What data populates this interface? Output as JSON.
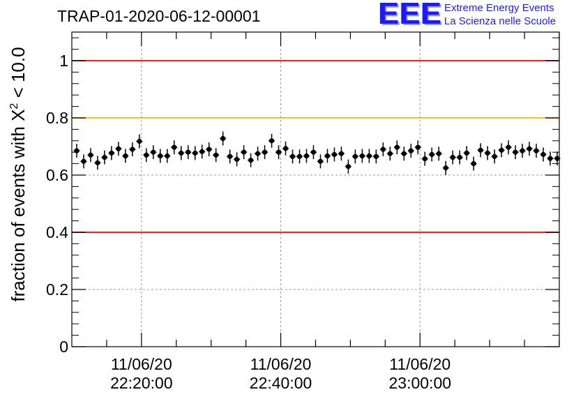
{
  "header": {
    "title": "TRAP-01-2020-06-12-00001",
    "logo_letters": "EEE",
    "logo_line1": "Extreme Energy Events",
    "logo_line2": "La Scienza nelle Scuole"
  },
  "colors": {
    "red_line": "#e8231f",
    "orange_line": "#ffc107",
    "marker": "#000000",
    "logo": "#1a1aff"
  },
  "chart_data": {
    "type": "scatter",
    "title": "TRAP-01-2020-06-12-00001",
    "ylabel_prefix": "fraction of events with ",
    "ylabel_symbol": "X",
    "ylabel_sup": "2",
    "ylabel_suffix": " < 10.0",
    "xlabel": "",
    "ylim": [
      0,
      1.1
    ],
    "yticks": [
      0,
      0.2,
      0.4,
      0.6,
      0.8,
      1
    ],
    "ytick_labels": [
      "0",
      "0.2",
      "0.4",
      "0.6",
      "0.8",
      "1"
    ],
    "xlim_minutes": [
      10,
      80
    ],
    "xticks_minutes": [
      20,
      40,
      60
    ],
    "xtick_labels": [
      [
        "11/06/20",
        "22:20:00"
      ],
      [
        "11/06/20",
        "22:40:00"
      ],
      [
        "11/06/20",
        "23:00:00"
      ]
    ],
    "grid": true,
    "reference_lines": [
      {
        "y": 1.0,
        "color": "red"
      },
      {
        "y": 0.8,
        "color": "orange"
      },
      {
        "y": 0.4,
        "color": "red"
      }
    ],
    "x_minutes": [
      10.7,
      11.7,
      12.7,
      13.7,
      14.7,
      15.7,
      16.7,
      17.7,
      18.7,
      19.7,
      20.7,
      21.7,
      22.7,
      23.7,
      24.7,
      25.7,
      26.7,
      27.7,
      28.7,
      29.7,
      30.7,
      31.7,
      32.7,
      33.7,
      34.7,
      35.7,
      36.7,
      37.7,
      38.7,
      39.7,
      40.7,
      41.7,
      42.7,
      43.7,
      44.7,
      45.7,
      46.7,
      47.7,
      48.7,
      49.7,
      50.7,
      51.7,
      52.7,
      53.7,
      54.7,
      55.7,
      56.7,
      57.7,
      58.7,
      59.7,
      60.7,
      61.7,
      62.7,
      63.7,
      64.7,
      65.7,
      66.7,
      67.7,
      68.7,
      69.7,
      70.7,
      71.7,
      72.7,
      73.7,
      74.7,
      75.7,
      76.7,
      77.7,
      78.7,
      79.7
    ],
    "y": [
      0.685,
      0.648,
      0.67,
      0.643,
      0.662,
      0.677,
      0.692,
      0.667,
      0.69,
      0.718,
      0.67,
      0.68,
      0.667,
      0.667,
      0.697,
      0.677,
      0.68,
      0.677,
      0.682,
      0.69,
      0.67,
      0.728,
      0.665,
      0.655,
      0.68,
      0.652,
      0.675,
      0.68,
      0.72,
      0.68,
      0.693,
      0.665,
      0.665,
      0.667,
      0.68,
      0.648,
      0.667,
      0.672,
      0.675,
      0.63,
      0.665,
      0.667,
      0.667,
      0.665,
      0.69,
      0.675,
      0.697,
      0.675,
      0.685,
      0.697,
      0.657,
      0.672,
      0.675,
      0.625,
      0.662,
      0.662,
      0.677,
      0.64,
      0.687,
      0.677,
      0.665,
      0.687,
      0.697,
      0.68,
      0.685,
      0.692,
      0.685,
      0.672,
      0.658,
      0.658
    ]
  }
}
